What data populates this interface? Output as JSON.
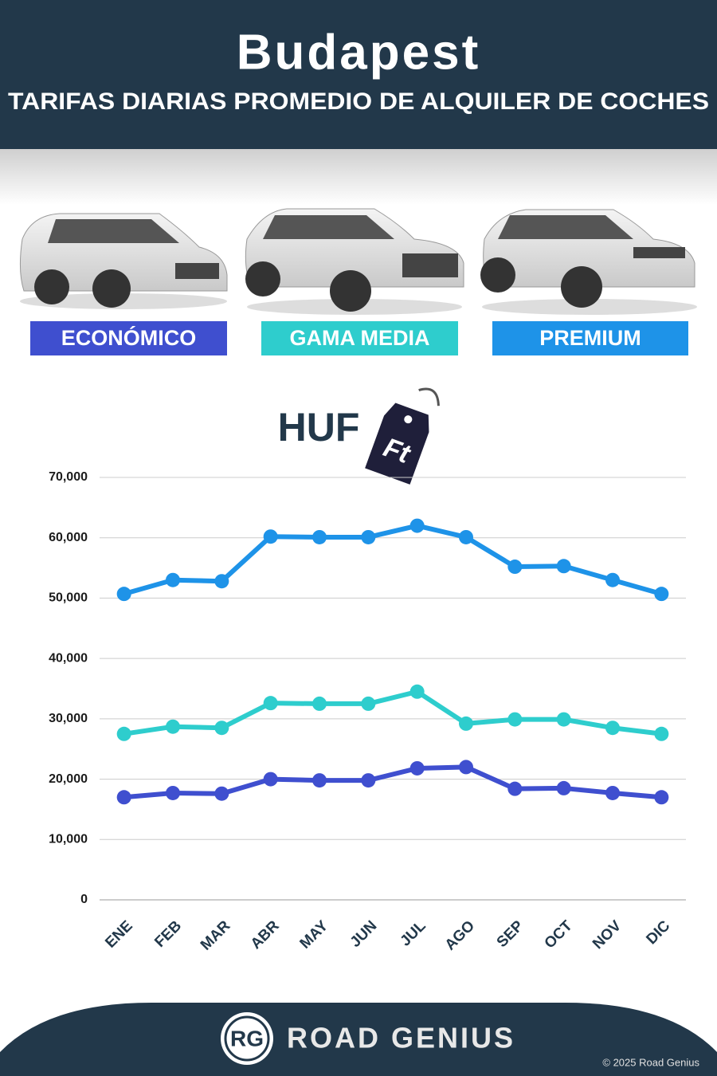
{
  "chart_data": {
    "type": "line",
    "title": "Budapest",
    "subtitle": "TARIFAS DIARIAS PROMEDIO DE ALQUILER DE COCHES",
    "currency": "HUF",
    "currency_symbol": "Ft",
    "categories": [
      "ENE",
      "FEB",
      "MAR",
      "ABR",
      "MAY",
      "JUN",
      "JUL",
      "AGO",
      "SEP",
      "OCT",
      "NOV",
      "DIC"
    ],
    "series": [
      {
        "name": "ECONÓMICO",
        "color": "#3f4fcf",
        "values": [
          17000,
          17700,
          17600,
          20000,
          19800,
          19800,
          21800,
          22000,
          18400,
          18500,
          17700,
          17000
        ]
      },
      {
        "name": "GAMA MEDIA",
        "color": "#2ecdcd",
        "values": [
          27500,
          28700,
          28500,
          32600,
          32500,
          32500,
          34500,
          29200,
          29900,
          29900,
          28500,
          27500
        ]
      },
      {
        "name": "PREMIUM",
        "color": "#1e93e8",
        "values": [
          50700,
          53000,
          52800,
          60200,
          60100,
          60100,
          62000,
          60100,
          55200,
          55300,
          53000,
          50700
        ]
      }
    ],
    "ylim": [
      0,
      70000
    ],
    "yticks": [
      0,
      {
        "value": 10000,
        "label": "10,000"
      },
      {
        "value": 20000,
        "label": "20,000"
      },
      {
        "value": 30000,
        "label": "30,000"
      },
      {
        "value": 40000,
        "label": "40,000"
      },
      {
        "value": 50000,
        "label": "50,000"
      },
      {
        "value": 60000,
        "label": "60,000"
      },
      {
        "value": 70000,
        "label": "70,000"
      }
    ],
    "grid": true
  },
  "footer": {
    "logo": "RG",
    "brand": "ROAD GENIUS",
    "copyright": "© 2025 Road Genius"
  }
}
